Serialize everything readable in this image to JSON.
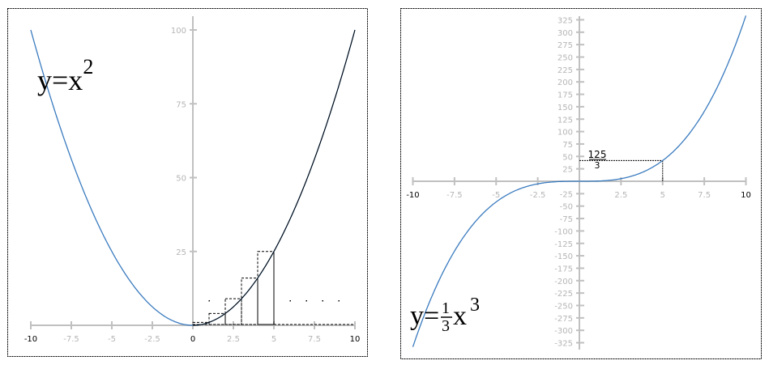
{
  "chart_data": [
    {
      "type": "line",
      "function": "x^2",
      "formula": {
        "base": "y=x",
        "exp": "2"
      },
      "x_range": [
        -10,
        10
      ],
      "y_range": [
        0,
        100
      ],
      "x_ticks": [
        "-10",
        "-7.5",
        "-5",
        "-2.5",
        "0",
        "2.5",
        "5",
        "7.5",
        "10"
      ],
      "x_tick_values": [
        -10,
        -7.5,
        -5,
        -2.5,
        0,
        2.5,
        5,
        7.5,
        10
      ],
      "y_ticks": [
        "25",
        "50",
        "75",
        "100"
      ],
      "y_tick_values": [
        25,
        50,
        75,
        100
      ],
      "curve_color": "#3a7bbf",
      "overlay_color": "#000000",
      "rectangles": [
        {
          "x0": 0,
          "x1": 1,
          "height": 1
        },
        {
          "x0": 1,
          "x1": 2,
          "height": 4
        },
        {
          "x0": 2,
          "x1": 3,
          "height": 9
        },
        {
          "x0": 3,
          "x1": 4,
          "height": 16
        },
        {
          "x0": 4,
          "x1": 5,
          "height": 25
        }
      ],
      "grid": false
    },
    {
      "type": "line",
      "function": "(1/3)x^3",
      "formula": {
        "base_left": "y=",
        "num": "1",
        "den": "3",
        "var": "x",
        "exp": "3"
      },
      "x_range": [
        -10,
        10
      ],
      "y_range": [
        -325,
        325
      ],
      "x_ticks": [
        "-10",
        "-7.5",
        "-5",
        "-2.5",
        "2.5",
        "5",
        "7.5",
        "10"
      ],
      "x_tick_values": [
        -10,
        -7.5,
        -5,
        -2.5,
        2.5,
        5,
        7.5,
        10
      ],
      "y_ticks": [
        "325",
        "300",
        "275",
        "250",
        "225",
        "200",
        "175",
        "150",
        "125",
        "100",
        "75",
        "50",
        "25",
        "-25",
        "-50",
        "-75",
        "-100",
        "-125",
        "-150",
        "-175",
        "-200",
        "-225",
        "-250",
        "-275",
        "-300",
        "-325"
      ],
      "y_tick_values": [
        325,
        300,
        275,
        250,
        225,
        200,
        175,
        150,
        125,
        100,
        75,
        50,
        25,
        -25,
        -50,
        -75,
        -100,
        -125,
        -150,
        -175,
        -200,
        -225,
        -250,
        -275,
        -300,
        -325
      ],
      "curve_color": "#3a7bbf",
      "marked_point": {
        "x": 5,
        "y": 41.667,
        "label_num": "125",
        "label_den": "3"
      },
      "grid": false
    }
  ]
}
